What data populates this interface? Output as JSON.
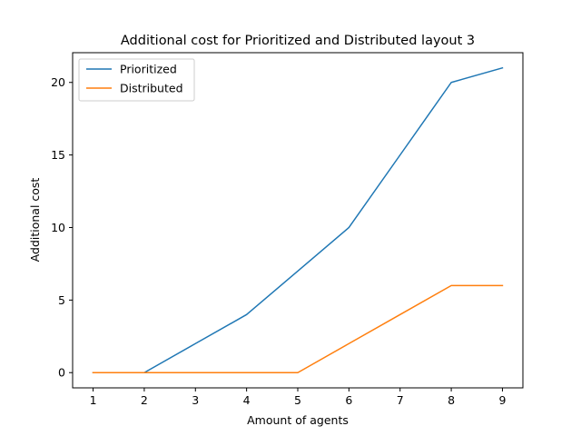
{
  "chart_data": {
    "type": "line",
    "title": "Additional cost for Prioritized and Distributed layout 3",
    "xlabel": "Amount of agents",
    "ylabel": "Additional cost",
    "x": [
      1,
      2,
      3,
      4,
      5,
      6,
      7,
      8,
      9
    ],
    "xlim": [
      0.6,
      9.4
    ],
    "ylim": [
      -1.05,
      22.05
    ],
    "xticks": [
      1,
      2,
      3,
      4,
      5,
      6,
      7,
      8,
      9
    ],
    "yticks": [
      0,
      5,
      10,
      15,
      20
    ],
    "grid": false,
    "legend_position": "top-left",
    "series": [
      {
        "name": "Prioritized",
        "color": "#1f77b4",
        "values": [
          0,
          0,
          2,
          4,
          7,
          10,
          15,
          20,
          21
        ]
      },
      {
        "name": "Distributed",
        "color": "#ff7f0e",
        "values": [
          0,
          0,
          0,
          0,
          0,
          2,
          4,
          6,
          6
        ]
      }
    ]
  }
}
